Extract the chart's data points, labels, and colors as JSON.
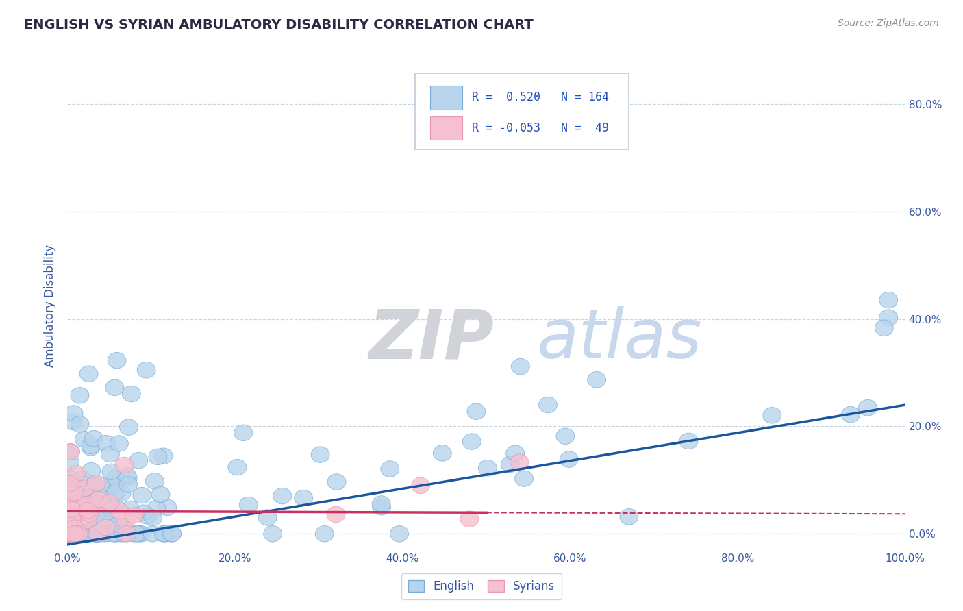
{
  "title": "ENGLISH VS SYRIAN AMBULATORY DISABILITY CORRELATION CHART",
  "source": "Source: ZipAtlas.com",
  "ylabel": "Ambulatory Disability",
  "xlim": [
    0,
    1.0
  ],
  "ylim": [
    -0.03,
    0.88
  ],
  "yticks": [
    0.0,
    0.2,
    0.4,
    0.6,
    0.8
  ],
  "xticks": [
    0.0,
    0.2,
    0.4,
    0.6,
    0.8,
    1.0
  ],
  "english_R": 0.52,
  "english_N": 164,
  "syrian_R": -0.053,
  "syrian_N": 49,
  "blue_dot_face": "#b8d4ec",
  "blue_dot_edge": "#7aacd8",
  "pink_dot_face": "#f5c0d0",
  "pink_dot_edge": "#e898b0",
  "blue_line_color": "#1a56a0",
  "pink_line_color": "#c83060",
  "grid_color": "#c8d4e0",
  "background_color": "#ffffff",
  "title_color": "#2a2a40",
  "axis_label_color": "#3858a0",
  "tick_color": "#3858a0",
  "watermark_ZIP_color": "#d0d4d8",
  "watermark_atlas_color": "#c8d8ec",
  "legend_border": "#c0ccd8",
  "legend_text_color": "#2050c0",
  "source_color": "#909090"
}
